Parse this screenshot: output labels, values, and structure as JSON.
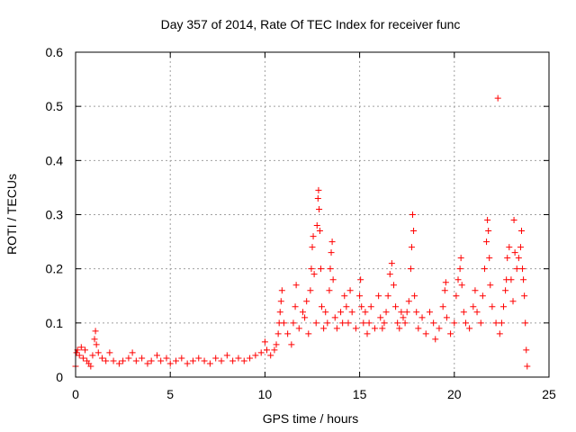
{
  "chart_data": {
    "type": "scatter",
    "title": "Day 357 of 2014, Rate Of TEC Index for receiver func",
    "xlabel": "GPS time / hours",
    "ylabel": "ROTI / TECUs",
    "xlim": [
      0,
      25
    ],
    "ylim": [
      0,
      0.6
    ],
    "x_ticks": [
      0,
      5,
      10,
      15,
      20,
      25
    ],
    "x_tick_labels": [
      "0",
      "5",
      "10",
      "15",
      "20",
      "25"
    ],
    "y_ticks": [
      0,
      0.1,
      0.2,
      0.3,
      0.4,
      0.5,
      0.6
    ],
    "y_tick_labels": [
      "0",
      "0.1",
      "0.2",
      "0.3",
      "0.4",
      "0.5",
      "0.6"
    ],
    "grid": true,
    "marker": "+",
    "color": "#ff0000",
    "series": [
      {
        "name": "ROTI",
        "points": [
          [
            0.0,
            0.02
          ],
          [
            0.05,
            0.045
          ],
          [
            0.1,
            0.05
          ],
          [
            0.2,
            0.04
          ],
          [
            0.3,
            0.055
          ],
          [
            0.4,
            0.035
          ],
          [
            0.5,
            0.05
          ],
          [
            0.6,
            0.03
          ],
          [
            0.7,
            0.025
          ],
          [
            0.8,
            0.02
          ],
          [
            0.9,
            0.04
          ],
          [
            1.0,
            0.07
          ],
          [
            1.05,
            0.085
          ],
          [
            1.1,
            0.06
          ],
          [
            1.2,
            0.045
          ],
          [
            1.4,
            0.035
          ],
          [
            1.6,
            0.03
          ],
          [
            1.8,
            0.045
          ],
          [
            2.0,
            0.03
          ],
          [
            2.3,
            0.025
          ],
          [
            2.5,
            0.03
          ],
          [
            2.8,
            0.035
          ],
          [
            3.0,
            0.045
          ],
          [
            3.2,
            0.03
          ],
          [
            3.5,
            0.035
          ],
          [
            3.8,
            0.025
          ],
          [
            4.0,
            0.03
          ],
          [
            4.3,
            0.04
          ],
          [
            4.5,
            0.03
          ],
          [
            4.8,
            0.035
          ],
          [
            5.0,
            0.025
          ],
          [
            5.3,
            0.03
          ],
          [
            5.6,
            0.035
          ],
          [
            5.9,
            0.025
          ],
          [
            6.2,
            0.03
          ],
          [
            6.5,
            0.035
          ],
          [
            6.8,
            0.03
          ],
          [
            7.1,
            0.025
          ],
          [
            7.4,
            0.035
          ],
          [
            7.7,
            0.03
          ],
          [
            8.0,
            0.04
          ],
          [
            8.3,
            0.03
          ],
          [
            8.6,
            0.035
          ],
          [
            8.9,
            0.03
          ],
          [
            9.2,
            0.035
          ],
          [
            9.5,
            0.04
          ],
          [
            9.8,
            0.045
          ],
          [
            10.0,
            0.065
          ],
          [
            10.1,
            0.05
          ],
          [
            10.3,
            0.04
          ],
          [
            10.5,
            0.05
          ],
          [
            10.6,
            0.06
          ],
          [
            10.7,
            0.08
          ],
          [
            10.75,
            0.1
          ],
          [
            10.8,
            0.12
          ],
          [
            10.85,
            0.14
          ],
          [
            10.9,
            0.16
          ],
          [
            11.0,
            0.1
          ],
          [
            11.2,
            0.08
          ],
          [
            11.4,
            0.06
          ],
          [
            11.5,
            0.1
          ],
          [
            11.6,
            0.13
          ],
          [
            11.65,
            0.17
          ],
          [
            11.8,
            0.09
          ],
          [
            12.0,
            0.12
          ],
          [
            12.1,
            0.11
          ],
          [
            12.2,
            0.14
          ],
          [
            12.3,
            0.08
          ],
          [
            12.4,
            0.16
          ],
          [
            12.45,
            0.2
          ],
          [
            12.5,
            0.24
          ],
          [
            12.55,
            0.26
          ],
          [
            12.6,
            0.19
          ],
          [
            12.7,
            0.1
          ],
          [
            12.75,
            0.28
          ],
          [
            12.8,
            0.33
          ],
          [
            12.83,
            0.345
          ],
          [
            12.86,
            0.31
          ],
          [
            12.9,
            0.27
          ],
          [
            12.95,
            0.2
          ],
          [
            13.0,
            0.13
          ],
          [
            13.1,
            0.09
          ],
          [
            13.2,
            0.12
          ],
          [
            13.3,
            0.1
          ],
          [
            13.4,
            0.16
          ],
          [
            13.45,
            0.2
          ],
          [
            13.5,
            0.23
          ],
          [
            13.55,
            0.25
          ],
          [
            13.6,
            0.18
          ],
          [
            13.7,
            0.11
          ],
          [
            13.8,
            0.09
          ],
          [
            14.0,
            0.12
          ],
          [
            14.1,
            0.1
          ],
          [
            14.2,
            0.15
          ],
          [
            14.3,
            0.13
          ],
          [
            14.4,
            0.1
          ],
          [
            14.5,
            0.16
          ],
          [
            14.6,
            0.12
          ],
          [
            14.8,
            0.09
          ],
          [
            15.0,
            0.15
          ],
          [
            15.05,
            0.18
          ],
          [
            15.1,
            0.13
          ],
          [
            15.2,
            0.1
          ],
          [
            15.3,
            0.12
          ],
          [
            15.4,
            0.08
          ],
          [
            15.5,
            0.1
          ],
          [
            15.6,
            0.13
          ],
          [
            15.8,
            0.09
          ],
          [
            16.0,
            0.15
          ],
          [
            16.1,
            0.11
          ],
          [
            16.2,
            0.09
          ],
          [
            16.3,
            0.1
          ],
          [
            16.4,
            0.12
          ],
          [
            16.5,
            0.15
          ],
          [
            16.6,
            0.19
          ],
          [
            16.7,
            0.21
          ],
          [
            16.8,
            0.17
          ],
          [
            16.9,
            0.13
          ],
          [
            17.0,
            0.1
          ],
          [
            17.1,
            0.09
          ],
          [
            17.2,
            0.12
          ],
          [
            17.3,
            0.11
          ],
          [
            17.4,
            0.1
          ],
          [
            17.5,
            0.12
          ],
          [
            17.6,
            0.14
          ],
          [
            17.7,
            0.2
          ],
          [
            17.75,
            0.24
          ],
          [
            17.8,
            0.3
          ],
          [
            17.85,
            0.27
          ],
          [
            17.9,
            0.15
          ],
          [
            18.0,
            0.12
          ],
          [
            18.1,
            0.09
          ],
          [
            18.3,
            0.11
          ],
          [
            18.5,
            0.08
          ],
          [
            18.7,
            0.12
          ],
          [
            18.9,
            0.1
          ],
          [
            19.0,
            0.07
          ],
          [
            19.2,
            0.09
          ],
          [
            19.4,
            0.13
          ],
          [
            19.5,
            0.16
          ],
          [
            19.55,
            0.175
          ],
          [
            19.6,
            0.11
          ],
          [
            19.8,
            0.08
          ],
          [
            20.0,
            0.1
          ],
          [
            20.1,
            0.15
          ],
          [
            20.2,
            0.18
          ],
          [
            20.3,
            0.2
          ],
          [
            20.35,
            0.22
          ],
          [
            20.4,
            0.17
          ],
          [
            20.5,
            0.12
          ],
          [
            20.6,
            0.1
          ],
          [
            20.8,
            0.09
          ],
          [
            21.0,
            0.13
          ],
          [
            21.1,
            0.16
          ],
          [
            21.2,
            0.12
          ],
          [
            21.4,
            0.1
          ],
          [
            21.5,
            0.15
          ],
          [
            21.6,
            0.2
          ],
          [
            21.7,
            0.25
          ],
          [
            21.75,
            0.29
          ],
          [
            21.8,
            0.27
          ],
          [
            21.85,
            0.22
          ],
          [
            21.9,
            0.17
          ],
          [
            22.0,
            0.13
          ],
          [
            22.2,
            0.1
          ],
          [
            22.3,
            0.515
          ],
          [
            22.4,
            0.08
          ],
          [
            22.5,
            0.1
          ],
          [
            22.6,
            0.13
          ],
          [
            22.7,
            0.16
          ],
          [
            22.75,
            0.18
          ],
          [
            22.8,
            0.22
          ],
          [
            22.9,
            0.24
          ],
          [
            23.0,
            0.18
          ],
          [
            23.1,
            0.14
          ],
          [
            23.15,
            0.29
          ],
          [
            23.2,
            0.23
          ],
          [
            23.3,
            0.2
          ],
          [
            23.4,
            0.22
          ],
          [
            23.5,
            0.24
          ],
          [
            23.55,
            0.27
          ],
          [
            23.6,
            0.2
          ],
          [
            23.65,
            0.18
          ],
          [
            23.7,
            0.15
          ],
          [
            23.75,
            0.1
          ],
          [
            23.8,
            0.05
          ],
          [
            23.85,
            0.02
          ]
        ]
      }
    ]
  }
}
